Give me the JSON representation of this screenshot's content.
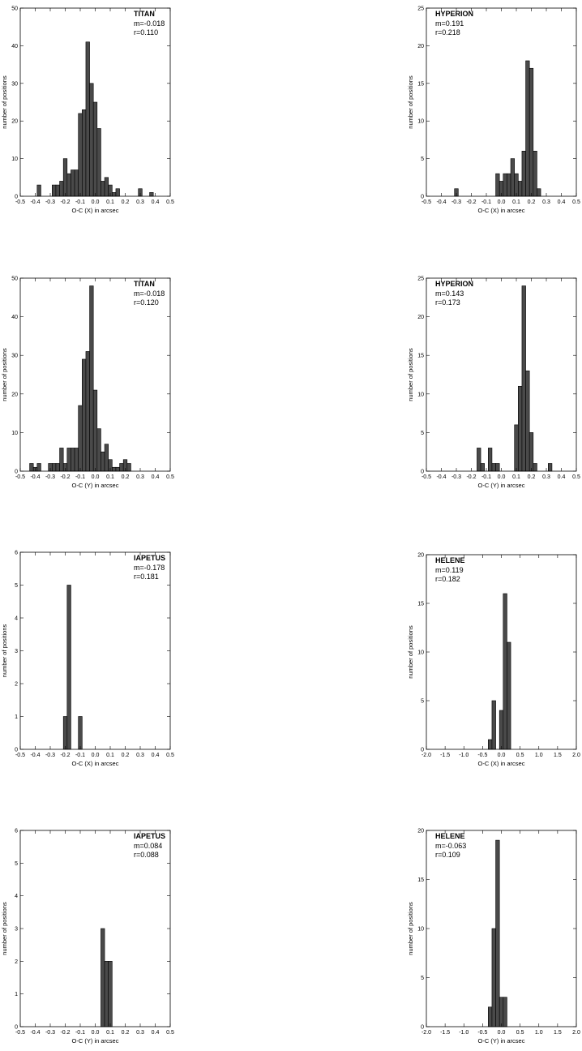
{
  "chart_data": [
    {
      "type": "bar",
      "title": "TITAN",
      "stats": [
        "m=-0.018",
        "r=0.110"
      ],
      "xlabel": "O-C (X) in arcsec",
      "ylabel": "number of positions",
      "xlim": [
        -0.5,
        0.5
      ],
      "ylim": [
        0,
        50
      ],
      "bin_width": 0.025,
      "xticks": [
        "-0.5",
        "-0.4",
        "-0.3",
        "-0.2",
        "-0.1",
        "0.0",
        "0.1",
        "0.2",
        "0.3",
        "0.4",
        "0.5"
      ],
      "yticks": [
        "0",
        "10",
        "20",
        "30",
        "40",
        "50"
      ],
      "x": [
        -0.375,
        -0.275,
        -0.25,
        -0.225,
        -0.2,
        -0.175,
        -0.15,
        -0.125,
        -0.1,
        -0.075,
        -0.05,
        -0.025,
        0.0,
        0.025,
        0.05,
        0.075,
        0.1,
        0.125,
        0.15,
        0.175,
        0.2,
        0.225,
        0.3,
        0.375
      ],
      "values": [
        3,
        3,
        3,
        4,
        10,
        6,
        7,
        7,
        22,
        23,
        41,
        30,
        25,
        18,
        4,
        5,
        3,
        1,
        2,
        0,
        0,
        0,
        2,
        1
      ]
    },
    {
      "type": "bar",
      "title": "HYPERION",
      "stats": [
        "m=0.191",
        "r=0.218"
      ],
      "xlabel": "O-C (X) in arcsec",
      "ylabel": "number of positions",
      "xlim": [
        -0.5,
        0.5
      ],
      "ylim": [
        0,
        25
      ],
      "bin_width": 0.025,
      "xticks": [
        "-0.5",
        "-0.4",
        "-0.3",
        "-0.2",
        "-0.1",
        "0.0",
        "0.1",
        "0.2",
        "0.3",
        "0.4",
        "0.5"
      ],
      "yticks": [
        "0",
        "5",
        "10",
        "15",
        "20",
        "25"
      ],
      "x": [
        -0.3,
        -0.025,
        0.0,
        0.025,
        0.05,
        0.075,
        0.1,
        0.125,
        0.15,
        0.175,
        0.2,
        0.225,
        0.25,
        0.275,
        0.3
      ],
      "values": [
        1,
        3,
        2,
        3,
        3,
        5,
        3,
        2,
        6,
        18,
        17,
        6,
        1,
        0,
        0
      ]
    },
    {
      "type": "bar",
      "title": "TITAN",
      "stats": [
        "m=-0.018",
        "r=0.120"
      ],
      "xlabel": "O-C (Y) in arcsec",
      "ylabel": "number of positions",
      "xlim": [
        -0.5,
        0.5
      ],
      "ylim": [
        0,
        50
      ],
      "bin_width": 0.025,
      "xticks": [
        "-0.5",
        "-0.4",
        "-0.3",
        "-0.2",
        "-0.1",
        "0.0",
        "0.1",
        "0.2",
        "0.3",
        "0.4",
        "0.5"
      ],
      "yticks": [
        "0",
        "10",
        "20",
        "30",
        "40",
        "50"
      ],
      "x": [
        -0.425,
        -0.4,
        -0.375,
        -0.3,
        -0.275,
        -0.25,
        -0.225,
        -0.2,
        -0.175,
        -0.15,
        -0.125,
        -0.1,
        -0.075,
        -0.05,
        -0.025,
        0.0,
        0.025,
        0.05,
        0.075,
        0.1,
        0.125,
        0.15,
        0.175,
        0.2,
        0.225,
        0.25,
        0.275,
        0.3,
        0.325
      ],
      "values": [
        2,
        1,
        2,
        2,
        2,
        2,
        6,
        2,
        6,
        6,
        6,
        17,
        29,
        31,
        48,
        21,
        11,
        5,
        7,
        3,
        1,
        1,
        2,
        3,
        2,
        0,
        0,
        0,
        0
      ]
    },
    {
      "type": "bar",
      "title": "HYPERION",
      "stats": [
        "m=0.143",
        "r=0.173"
      ],
      "xlabel": "O-C (Y) in arcsec",
      "ylabel": "number of positions",
      "xlim": [
        -0.5,
        0.5
      ],
      "ylim": [
        0,
        25
      ],
      "bin_width": 0.025,
      "xticks": [
        "-0.5",
        "-0.4",
        "-0.3",
        "-0.2",
        "-0.1",
        "0.0",
        "0.1",
        "0.2",
        "0.3",
        "0.4",
        "0.5"
      ],
      "yticks": [
        "0",
        "5",
        "10",
        "15",
        "20",
        "25"
      ],
      "x": [
        -0.15,
        -0.125,
        -0.075,
        -0.05,
        -0.025,
        0.1,
        0.125,
        0.15,
        0.175,
        0.2,
        0.225,
        0.325
      ],
      "values": [
        3,
        1,
        3,
        1,
        1,
        6,
        11,
        24,
        13,
        5,
        1,
        1
      ]
    },
    {
      "type": "bar",
      "title": "IAPETUS",
      "stats": [
        "m=-0.178",
        "r=0.181"
      ],
      "xlabel": "O-C (X) in arcsec",
      "ylabel": "number of positions",
      "xlim": [
        -0.5,
        0.5
      ],
      "ylim": [
        0,
        6
      ],
      "bin_width": 0.025,
      "xticks": [
        "-0.5",
        "-0.4",
        "-0.3",
        "-0.2",
        "-0.1",
        "0.0",
        "0.1",
        "0.2",
        "0.3",
        "0.4",
        "0.5"
      ],
      "yticks": [
        "0",
        "1",
        "2",
        "3",
        "4",
        "5",
        "6"
      ],
      "x": [
        -0.2,
        -0.175,
        -0.1
      ],
      "values": [
        1,
        5,
        1
      ]
    },
    {
      "type": "bar",
      "title": "HELENE",
      "stats": [
        "m=0.119",
        "r=0.182"
      ],
      "xlabel": "O-C (X) in arcsec",
      "ylabel": "number of positions",
      "xlim": [
        -2.0,
        2.0
      ],
      "ylim": [
        0,
        20
      ],
      "bin_width": 0.1,
      "xticks": [
        "-2.0",
        "-1.5",
        "-1.0",
        "-0.5",
        "0.0",
        "0.5",
        "1.0",
        "1.5",
        "2.0"
      ],
      "yticks": [
        "0",
        "5",
        "10",
        "15",
        "20"
      ],
      "x": [
        -0.3,
        -0.2,
        0.0,
        0.1,
        0.2
      ],
      "values": [
        1,
        5,
        4,
        16,
        11
      ]
    },
    {
      "type": "bar",
      "title": "IAPETUS",
      "stats": [
        "m=0.084",
        "r=0.088"
      ],
      "xlabel": "O-C (Y) in arcsec",
      "ylabel": "number of positions",
      "xlim": [
        -0.5,
        0.5
      ],
      "ylim": [
        0,
        6
      ],
      "bin_width": 0.025,
      "xticks": [
        "-0.5",
        "-0.4",
        "-0.3",
        "-0.2",
        "-0.1",
        "0.0",
        "0.1",
        "0.2",
        "0.3",
        "0.4",
        "0.5"
      ],
      "yticks": [
        "0",
        "1",
        "2",
        "3",
        "4",
        "5",
        "6"
      ],
      "x": [
        0.05,
        0.075,
        0.1
      ],
      "values": [
        3,
        2,
        2
      ]
    },
    {
      "type": "bar",
      "title": "HELENE",
      "stats": [
        "m=-0.063",
        "r=0.109"
      ],
      "xlabel": "O-C (Y) in arcsec",
      "ylabel": "number of positions",
      "xlim": [
        -2.0,
        2.0
      ],
      "ylim": [
        0,
        20
      ],
      "bin_width": 0.1,
      "xticks": [
        "-2.0",
        "-1.5",
        "-1.0",
        "-0.5",
        "0.0",
        "0.5",
        "1.0",
        "1.5",
        "2.0"
      ],
      "yticks": [
        "0",
        "5",
        "10",
        "15",
        "20"
      ],
      "x": [
        -0.3,
        -0.2,
        -0.1,
        0.0,
        0.1
      ],
      "values": [
        2,
        10,
        19,
        3,
        3
      ]
    }
  ],
  "colors": {
    "bar_fill": "#4a4a4a",
    "bar_stroke": "#000000",
    "axis": "#000000"
  }
}
